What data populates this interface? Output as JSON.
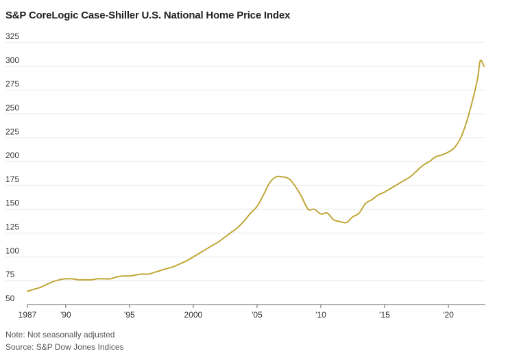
{
  "chart_data": {
    "type": "line",
    "title": "S&P CoreLogic Case-Shiller U.S. National Home Price Index",
    "xlabel": "",
    "ylabel": "",
    "xlim": [
      1987,
      2022.9
    ],
    "ylim": [
      50,
      325
    ],
    "yticks": [
      50,
      75,
      100,
      125,
      150,
      175,
      200,
      225,
      250,
      275,
      300,
      325
    ],
    "ytick_labels": [
      "50",
      "75",
      "100",
      "125",
      "150",
      "175",
      "200",
      "225",
      "250",
      "275",
      "300",
      "325"
    ],
    "xticks": [
      1987,
      1990,
      1995,
      2000,
      2005,
      2010,
      2015,
      2020
    ],
    "xtick_labels": [
      "1987",
      "'90",
      "'95",
      "2000",
      "'05",
      "'10",
      "'15",
      "'20"
    ],
    "grid": true,
    "series": [
      {
        "color": "#c0a636",
        "x": [
          1987.0,
          1987.5,
          1988.0,
          1988.5,
          1989.0,
          1989.5,
          1990.0,
          1990.5,
          1991.0,
          1991.5,
          1992.0,
          1992.5,
          1993.0,
          1993.5,
          1994.0,
          1994.5,
          1995.0,
          1995.5,
          1996.0,
          1996.5,
          1997.0,
          1997.5,
          1998.0,
          1998.5,
          1999.0,
          1999.5,
          2000.0,
          2000.5,
          2001.0,
          2001.5,
          2002.0,
          2002.5,
          2003.0,
          2003.5,
          2004.0,
          2004.5,
          2005.0,
          2005.5,
          2006.0,
          2006.5,
          2007.0,
          2007.5,
          2008.0,
          2008.5,
          2009.0,
          2009.5,
          2010.0,
          2010.5,
          2011.0,
          2011.5,
          2012.0,
          2012.5,
          2013.0,
          2013.5,
          2014.0,
          2014.5,
          2015.0,
          2015.5,
          2016.0,
          2016.5,
          2017.0,
          2017.5,
          2018.0,
          2018.5,
          2019.0,
          2019.5,
          2020.0,
          2020.5,
          2021.0,
          2021.5,
          2022.0,
          2022.3,
          2022.5,
          2022.8
        ],
        "y": [
          64,
          66,
          68,
          71,
          74,
          76,
          77,
          77,
          76,
          76,
          76,
          77,
          77,
          77,
          79,
          80,
          80,
          81,
          82,
          82,
          84,
          86,
          88,
          90,
          93,
          96,
          100,
          104,
          108,
          112,
          116,
          121,
          126,
          131,
          138,
          146,
          153,
          165,
          178,
          184,
          184,
          182,
          174,
          163,
          150,
          150,
          145,
          146,
          139,
          137,
          136,
          142,
          146,
          156,
          160,
          165,
          168,
          172,
          176,
          180,
          184,
          190,
          196,
          200,
          205,
          207,
          210,
          215,
          226,
          245,
          270,
          288,
          306,
          300
        ]
      }
    ],
    "notes": [
      "Note: Not seasonally adjusted",
      "Source: S&P Dow Jones Indices"
    ]
  }
}
